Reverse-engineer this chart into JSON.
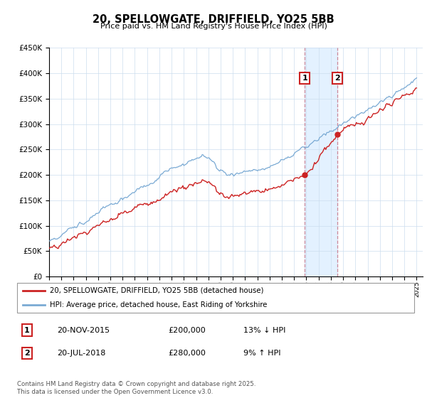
{
  "title": "20, SPELLOWGATE, DRIFFIELD, YO25 5BB",
  "subtitle": "Price paid vs. HM Land Registry's House Price Index (HPI)",
  "legend_line1": "20, SPELLOWGATE, DRIFFIELD, YO25 5BB (detached house)",
  "legend_line2": "HPI: Average price, detached house, East Riding of Yorkshire",
  "sale1_date": "20-NOV-2015",
  "sale1_price": "£200,000",
  "sale1_hpi": "13% ↓ HPI",
  "sale2_date": "20-JUL-2018",
  "sale2_price": "£280,000",
  "sale2_hpi": "9% ↑ HPI",
  "footer": "Contains HM Land Registry data © Crown copyright and database right 2025.\nThis data is licensed under the Open Government Licence v3.0.",
  "sale1_year": 2015.88,
  "sale2_year": 2018.54,
  "sale1_price_val": 200000,
  "sale2_price_val": 280000,
  "hpi_color": "#7aaad4",
  "price_color": "#cc2222",
  "shade_color": "#ddeeff",
  "ylim_min": 0,
  "ylim_max": 450000,
  "xlim_min": 1995.0,
  "xlim_max": 2025.5
}
